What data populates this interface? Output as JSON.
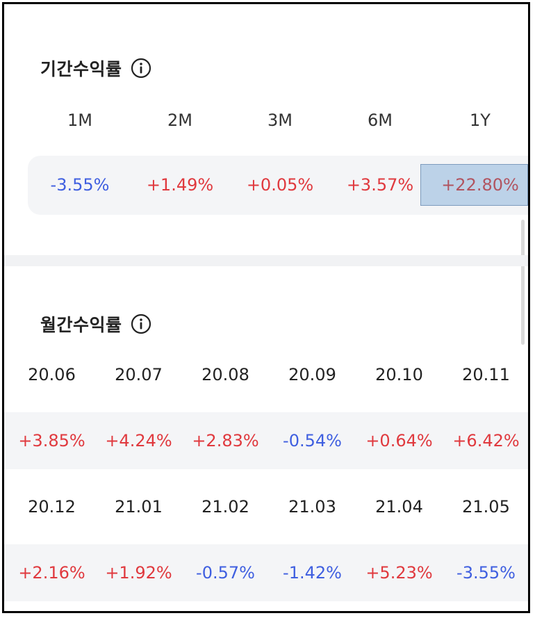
{
  "period_section": {
    "title": "기간수익률",
    "info_icon": "info-icon",
    "periods": [
      {
        "label": "1M",
        "value": "-3.55%",
        "trend": "neg"
      },
      {
        "label": "2M",
        "value": "+1.49%",
        "trend": "pos"
      },
      {
        "label": "3M",
        "value": "+0.05%",
        "trend": "pos"
      },
      {
        "label": "6M",
        "value": "+3.57%",
        "trend": "pos"
      },
      {
        "label": "1Y",
        "value": "+22.80%",
        "trend": "pos",
        "selected": true
      }
    ]
  },
  "monthly_section": {
    "title": "월간수익률",
    "info_icon": "info-icon",
    "rows": [
      {
        "months": [
          "20.06",
          "20.07",
          "20.08",
          "20.09",
          "20.10",
          "20.11"
        ],
        "values": [
          "+3.85%",
          "+4.24%",
          "+2.83%",
          "-0.54%",
          "+0.64%",
          "+6.42%"
        ]
      },
      {
        "months": [
          "20.12",
          "21.01",
          "21.02",
          "21.03",
          "21.04",
          "21.05"
        ],
        "values": [
          "+2.16%",
          "+1.92%",
          "-0.57%",
          "-1.42%",
          "+5.23%",
          "-3.55%"
        ]
      }
    ]
  },
  "colors": {
    "positive": "#e0393e",
    "negative": "#3f5fe0",
    "selected_bg": "#bcd2e8",
    "row_bg": "#f4f5f7"
  }
}
